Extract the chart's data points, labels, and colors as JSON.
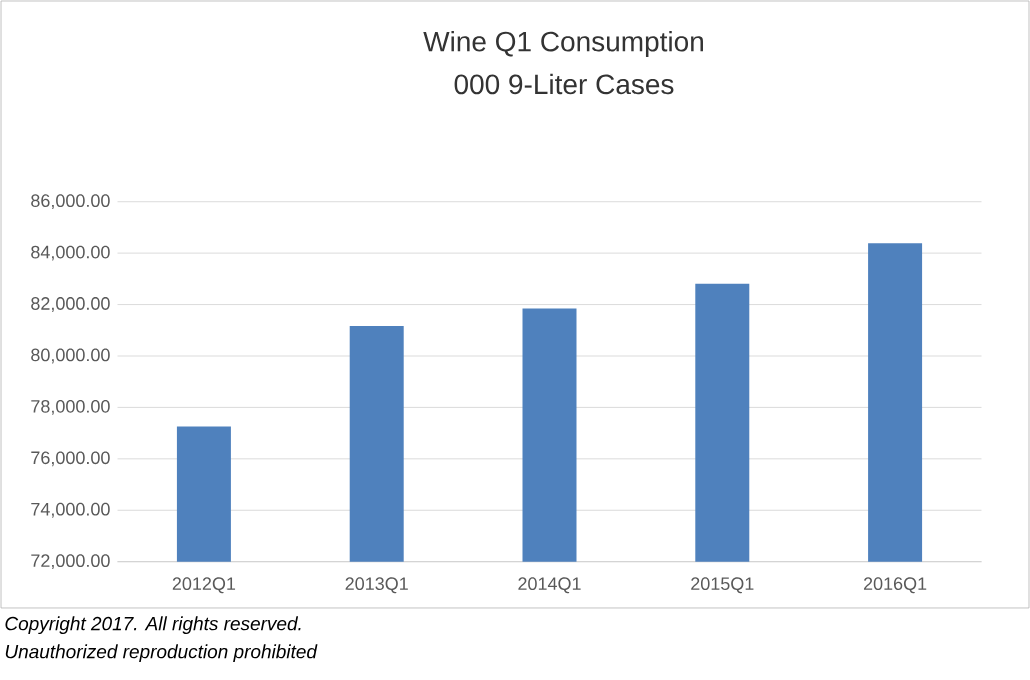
{
  "chart_data": {
    "type": "bar",
    "title": "Wine Q1 Consumption",
    "subtitle": "000 9-Liter Cases",
    "categories": [
      "2012Q1",
      "2013Q1",
      "2014Q1",
      "2015Q1",
      "2016Q1"
    ],
    "values": [
      77260,
      81170,
      81850,
      82810,
      84380
    ],
    "color": "#4f81bd",
    "ylim": [
      72000,
      86000
    ],
    "yticks": [
      {
        "value": 72000,
        "label": "72,000.00"
      },
      {
        "value": 74000,
        "label": "74,000.00"
      },
      {
        "value": 76000,
        "label": "76,000.00"
      },
      {
        "value": 78000,
        "label": "78,000.00"
      },
      {
        "value": 80000,
        "label": "80,000.00"
      },
      {
        "value": 82000,
        "label": "82,000.00"
      },
      {
        "value": 84000,
        "label": "84,000.00"
      },
      {
        "value": 86000,
        "label": "86,000.00"
      }
    ],
    "grid": "y",
    "annotations": [
      "Copyright 2017.  All rights reserved.",
      "Unauthorized reproduction prohibited"
    ]
  }
}
